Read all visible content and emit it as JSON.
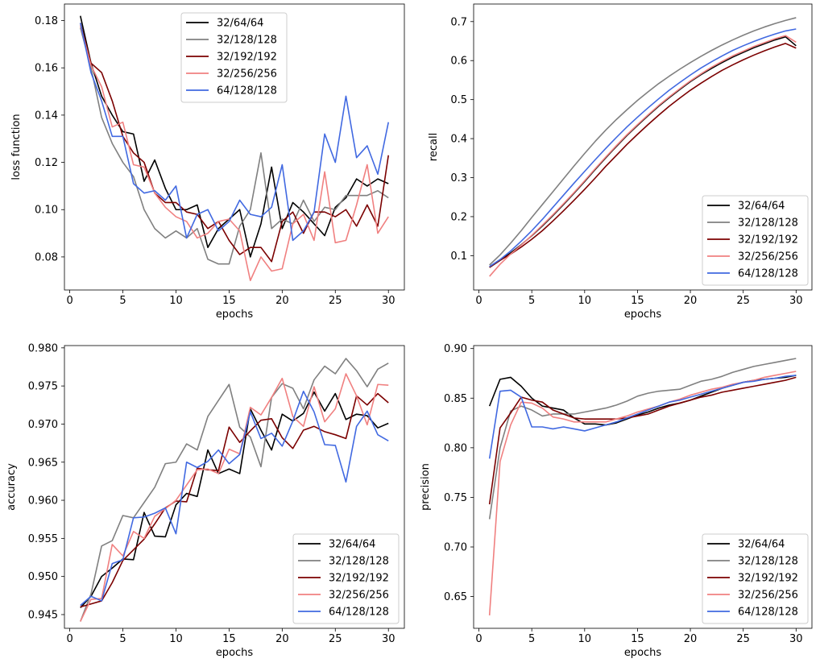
{
  "colors": {
    "32/64/64": "#000000",
    "32/128/128": "#808080",
    "32/192/192": "#7b0000",
    "32/256/256": "#f08080",
    "64/128/128": "#4169e1"
  },
  "chart_data": [
    {
      "type": "line",
      "panel": "top-left",
      "xlabel": "epochs",
      "ylabel": "loss function",
      "xlim": [
        -0.5,
        31.5
      ],
      "ylim": [
        0.066,
        0.187
      ],
      "xticks": [
        0,
        5,
        10,
        15,
        20,
        25,
        30
      ],
      "yticks": [
        0.08,
        0.1,
        0.12,
        0.14,
        0.16,
        0.18
      ],
      "ytick_labels": [
        "0.08",
        "0.10",
        "0.12",
        "0.14",
        "0.16",
        "0.18"
      ],
      "legend_position": "upper-center",
      "x": [
        1,
        2,
        3,
        4,
        5,
        6,
        7,
        8,
        9,
        10,
        11,
        12,
        13,
        14,
        15,
        16,
        17,
        18,
        19,
        20,
        21,
        22,
        23,
        24,
        25,
        26,
        27,
        28,
        29,
        30
      ],
      "series": [
        {
          "name": "32/64/64",
          "values": [
            0.182,
            0.162,
            0.148,
            0.14,
            0.133,
            0.132,
            0.112,
            0.121,
            0.109,
            0.1,
            0.1,
            0.102,
            0.084,
            0.092,
            0.096,
            0.1,
            0.08,
            0.094,
            0.118,
            0.092,
            0.103,
            0.099,
            0.094,
            0.089,
            0.101,
            0.105,
            0.113,
            0.11,
            0.113,
            0.111
          ]
        },
        {
          "name": "32/128/128",
          "values": [
            0.177,
            0.16,
            0.139,
            0.128,
            0.12,
            0.114,
            0.1,
            0.092,
            0.088,
            0.091,
            0.088,
            0.092,
            0.079,
            0.077,
            0.077,
            0.093,
            0.1,
            0.124,
            0.092,
            0.096,
            0.094,
            0.104,
            0.095,
            0.101,
            0.1,
            0.106,
            0.106,
            0.106,
            0.108,
            0.105
          ]
        },
        {
          "name": "32/192/192",
          "values": [
            0.179,
            0.162,
            0.158,
            0.146,
            0.131,
            0.124,
            0.12,
            0.107,
            0.103,
            0.103,
            0.099,
            0.098,
            0.092,
            0.095,
            0.087,
            0.081,
            0.084,
            0.084,
            0.078,
            0.095,
            0.099,
            0.09,
            0.099,
            0.099,
            0.097,
            0.1,
            0.093,
            0.102,
            0.093,
            0.123
          ]
        },
        {
          "name": "32/256/256",
          "values": [
            0.178,
            0.161,
            0.152,
            0.135,
            0.137,
            0.119,
            0.118,
            0.107,
            0.101,
            0.097,
            0.095,
            0.088,
            0.09,
            0.095,
            0.096,
            0.091,
            0.07,
            0.08,
            0.074,
            0.075,
            0.094,
            0.098,
            0.087,
            0.116,
            0.086,
            0.087,
            0.102,
            0.119,
            0.09,
            0.097
          ]
        },
        {
          "name": "64/128/128",
          "values": [
            0.179,
            0.158,
            0.146,
            0.131,
            0.131,
            0.111,
            0.107,
            0.108,
            0.104,
            0.11,
            0.088,
            0.098,
            0.1,
            0.091,
            0.095,
            0.104,
            0.098,
            0.097,
            0.101,
            0.119,
            0.087,
            0.091,
            0.099,
            0.132,
            0.12,
            0.148,
            0.122,
            0.127,
            0.115,
            0.137
          ]
        }
      ]
    },
    {
      "type": "line",
      "panel": "top-right",
      "xlabel": "epochs",
      "ylabel": "recall",
      "xlim": [
        -0.5,
        31.5
      ],
      "ylim": [
        0.012,
        0.745
      ],
      "xticks": [
        0,
        5,
        10,
        15,
        20,
        25,
        30
      ],
      "yticks": [
        0.1,
        0.2,
        0.3,
        0.4,
        0.5,
        0.6,
        0.7
      ],
      "ytick_labels": [
        "0.1",
        "0.2",
        "0.3",
        "0.4",
        "0.5",
        "0.6",
        "0.7"
      ],
      "legend_position": "lower-right",
      "x": [
        1,
        2,
        3,
        4,
        5,
        6,
        7,
        8,
        9,
        10,
        11,
        12,
        13,
        14,
        15,
        16,
        17,
        18,
        19,
        20,
        21,
        22,
        23,
        24,
        25,
        26,
        27,
        28,
        29,
        30
      ],
      "series": [
        {
          "name": "32/64/64",
          "values": [
            0.07,
            0.088,
            0.107,
            0.128,
            0.151,
            0.176,
            0.203,
            0.231,
            0.26,
            0.29,
            0.321,
            0.351,
            0.38,
            0.408,
            0.434,
            0.459,
            0.483,
            0.505,
            0.526,
            0.546,
            0.564,
            0.58,
            0.595,
            0.609,
            0.621,
            0.633,
            0.643,
            0.653,
            0.661,
            0.638
          ]
        },
        {
          "name": "32/128/128",
          "values": [
            0.076,
            0.102,
            0.132,
            0.164,
            0.198,
            0.231,
            0.264,
            0.297,
            0.33,
            0.362,
            0.393,
            0.422,
            0.449,
            0.474,
            0.498,
            0.52,
            0.541,
            0.56,
            0.578,
            0.595,
            0.611,
            0.626,
            0.64,
            0.653,
            0.665,
            0.676,
            0.686,
            0.695,
            0.703,
            0.71
          ]
        },
        {
          "name": "32/192/192",
          "values": [
            0.07,
            0.088,
            0.104,
            0.122,
            0.142,
            0.164,
            0.189,
            0.215,
            0.242,
            0.27,
            0.299,
            0.329,
            0.357,
            0.385,
            0.411,
            0.436,
            0.46,
            0.483,
            0.504,
            0.524,
            0.542,
            0.559,
            0.575,
            0.589,
            0.602,
            0.614,
            0.625,
            0.635,
            0.644,
            0.632
          ]
        },
        {
          "name": "32/256/256",
          "values": [
            0.047,
            0.078,
            0.104,
            0.127,
            0.152,
            0.178,
            0.205,
            0.233,
            0.262,
            0.292,
            0.323,
            0.353,
            0.382,
            0.41,
            0.436,
            0.461,
            0.485,
            0.507,
            0.528,
            0.548,
            0.566,
            0.583,
            0.598,
            0.612,
            0.624,
            0.636,
            0.646,
            0.656,
            0.664,
            0.647
          ]
        },
        {
          "name": "64/128/128",
          "values": [
            0.072,
            0.09,
            0.112,
            0.137,
            0.164,
            0.193,
            0.224,
            0.255,
            0.286,
            0.316,
            0.346,
            0.375,
            0.403,
            0.43,
            0.455,
            0.479,
            0.502,
            0.524,
            0.544,
            0.563,
            0.581,
            0.597,
            0.612,
            0.626,
            0.638,
            0.649,
            0.659,
            0.668,
            0.676,
            0.681
          ]
        }
      ]
    },
    {
      "type": "line",
      "panel": "bottom-left",
      "xlabel": "epochs",
      "ylabel": "accuracy",
      "xlim": [
        -0.5,
        31.5
      ],
      "ylim": [
        0.9432,
        0.9803
      ],
      "xticks": [
        0,
        5,
        10,
        15,
        20,
        25,
        30
      ],
      "yticks": [
        0.945,
        0.95,
        0.955,
        0.96,
        0.965,
        0.97,
        0.975,
        0.98
      ],
      "ytick_labels": [
        "0.945",
        "0.950",
        "0.955",
        "0.960",
        "0.965",
        "0.970",
        "0.975",
        "0.980"
      ],
      "legend_position": "lower-right",
      "x": [
        1,
        2,
        3,
        4,
        5,
        6,
        7,
        8,
        9,
        10,
        11,
        12,
        13,
        14,
        15,
        16,
        17,
        18,
        19,
        20,
        21,
        22,
        23,
        24,
        25,
        26,
        27,
        28,
        29,
        30
      ],
      "series": [
        {
          "name": "32/64/64",
          "values": [
            0.9459,
            0.9474,
            0.95,
            0.9511,
            0.9523,
            0.9522,
            0.9584,
            0.9553,
            0.9552,
            0.9594,
            0.9609,
            0.9605,
            0.9666,
            0.9635,
            0.9641,
            0.9635,
            0.972,
            0.9692,
            0.9666,
            0.9713,
            0.9704,
            0.9714,
            0.9742,
            0.9717,
            0.974,
            0.9706,
            0.9713,
            0.9711,
            0.9695,
            0.9701
          ]
        },
        {
          "name": "32/128/128",
          "values": [
            0.9441,
            0.9477,
            0.954,
            0.9547,
            0.958,
            0.9577,
            0.9597,
            0.9617,
            0.9648,
            0.965,
            0.9674,
            0.9666,
            0.971,
            0.9731,
            0.9752,
            0.9696,
            0.9683,
            0.9644,
            0.9735,
            0.9753,
            0.9747,
            0.972,
            0.9758,
            0.9776,
            0.9766,
            0.9786,
            0.977,
            0.9749,
            0.9772,
            0.978
          ]
        },
        {
          "name": "32/192/192",
          "values": [
            0.946,
            0.9464,
            0.9468,
            0.9492,
            0.9521,
            0.9535,
            0.9549,
            0.9569,
            0.959,
            0.9599,
            0.9598,
            0.9642,
            0.964,
            0.9639,
            0.9696,
            0.9676,
            0.9691,
            0.9705,
            0.9707,
            0.9682,
            0.9668,
            0.9692,
            0.9697,
            0.969,
            0.9686,
            0.9681,
            0.9737,
            0.9725,
            0.974,
            0.9728
          ]
        },
        {
          "name": "32/256/256",
          "values": [
            0.9441,
            0.947,
            0.9471,
            0.9542,
            0.9527,
            0.9559,
            0.955,
            0.9579,
            0.9589,
            0.96,
            0.962,
            0.964,
            0.9641,
            0.9635,
            0.9667,
            0.9661,
            0.9722,
            0.9712,
            0.9735,
            0.976,
            0.971,
            0.9697,
            0.9749,
            0.9703,
            0.972,
            0.9766,
            0.9737,
            0.9699,
            0.9752,
            0.9751
          ]
        },
        {
          "name": "64/128/128",
          "values": [
            0.9462,
            0.9474,
            0.9468,
            0.9517,
            0.9522,
            0.9577,
            0.9578,
            0.9583,
            0.959,
            0.9556,
            0.965,
            0.9643,
            0.9651,
            0.9666,
            0.9648,
            0.966,
            0.9716,
            0.9681,
            0.9688,
            0.9671,
            0.9704,
            0.9743,
            0.9716,
            0.9673,
            0.9672,
            0.9624,
            0.9697,
            0.9717,
            0.9686,
            0.9678
          ]
        }
      ]
    },
    {
      "type": "line",
      "panel": "bottom-right",
      "xlabel": "epochs",
      "ylabel": "precision",
      "xlim": [
        -0.5,
        31.5
      ],
      "ylim": [
        0.618,
        0.903
      ],
      "xticks": [
        0,
        5,
        10,
        15,
        20,
        25,
        30
      ],
      "yticks": [
        0.65,
        0.7,
        0.75,
        0.8,
        0.85,
        0.9
      ],
      "ytick_labels": [
        "0.65",
        "0.70",
        "0.75",
        "0.80",
        "0.85",
        "0.90"
      ],
      "legend_position": "lower-right",
      "x": [
        1,
        2,
        3,
        4,
        5,
        6,
        7,
        8,
        9,
        10,
        11,
        12,
        13,
        14,
        15,
        16,
        17,
        18,
        19,
        20,
        21,
        22,
        23,
        24,
        25,
        26,
        27,
        28,
        29,
        30
      ],
      "series": [
        {
          "name": "32/64/64",
          "values": [
            0.842,
            0.869,
            0.871,
            0.862,
            0.85,
            0.842,
            0.84,
            0.838,
            0.83,
            0.824,
            0.824,
            0.823,
            0.825,
            0.829,
            0.833,
            0.836,
            0.84,
            0.843,
            0.845,
            0.848,
            0.852,
            0.856,
            0.86,
            0.863,
            0.866,
            0.868,
            0.869,
            0.87,
            0.871,
            0.873
          ]
        },
        {
          "name": "32/128/128",
          "values": [
            0.728,
            0.8,
            0.837,
            0.842,
            0.838,
            0.832,
            0.834,
            0.834,
            0.834,
            0.836,
            0.838,
            0.84,
            0.843,
            0.847,
            0.852,
            0.855,
            0.857,
            0.858,
            0.859,
            0.863,
            0.867,
            0.869,
            0.872,
            0.876,
            0.879,
            0.882,
            0.884,
            0.886,
            0.888,
            0.89
          ]
        },
        {
          "name": "32/192/192",
          "values": [
            0.743,
            0.82,
            0.835,
            0.851,
            0.848,
            0.846,
            0.838,
            0.834,
            0.83,
            0.829,
            0.829,
            0.829,
            0.829,
            0.83,
            0.832,
            0.834,
            0.838,
            0.842,
            0.845,
            0.848,
            0.851,
            0.853,
            0.856,
            0.858,
            0.86,
            0.862,
            0.864,
            0.866,
            0.868,
            0.871
          ]
        },
        {
          "name": "32/256/256",
          "values": [
            0.631,
            0.786,
            0.823,
            0.846,
            0.845,
            0.84,
            0.831,
            0.829,
            0.826,
            0.826,
            0.826,
            0.826,
            0.829,
            0.832,
            0.836,
            0.839,
            0.842,
            0.846,
            0.849,
            0.853,
            0.856,
            0.859,
            0.861,
            0.864,
            0.866,
            0.868,
            0.871,
            0.873,
            0.875,
            0.877
          ]
        },
        {
          "name": "64/128/128",
          "values": [
            0.789,
            0.857,
            0.858,
            0.851,
            0.821,
            0.821,
            0.819,
            0.821,
            0.819,
            0.817,
            0.82,
            0.823,
            0.826,
            0.83,
            0.834,
            0.838,
            0.842,
            0.846,
            0.848,
            0.851,
            0.854,
            0.857,
            0.86,
            0.863,
            0.866,
            0.867,
            0.869,
            0.87,
            0.872,
            0.873
          ]
        }
      ]
    }
  ]
}
